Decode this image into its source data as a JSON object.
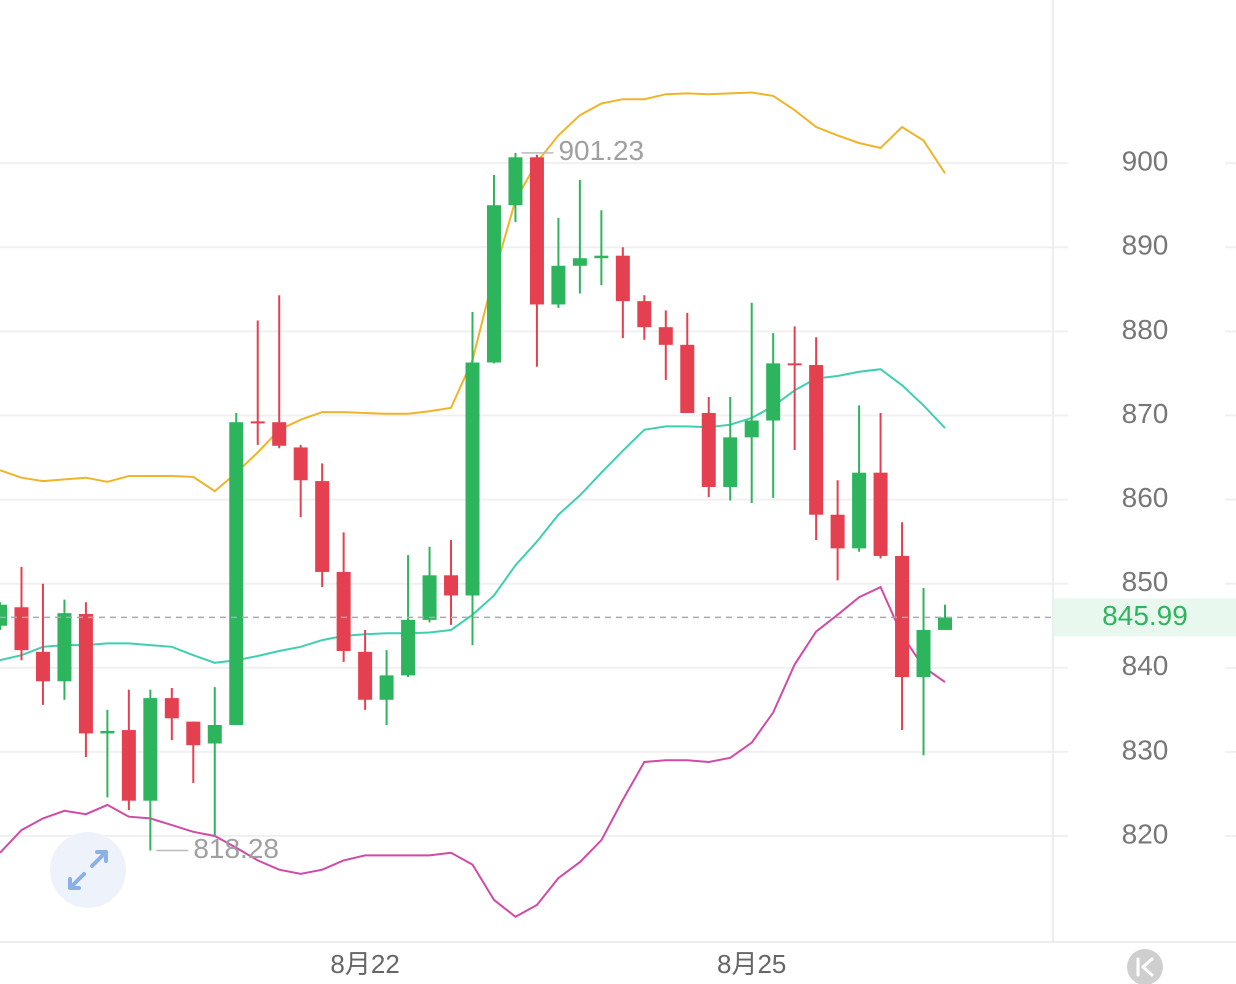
{
  "chart_data": {
    "type": "candlestick",
    "categories": [
      null,
      null,
      null,
      null,
      null,
      null,
      null,
      null,
      null,
      null,
      null,
      null,
      null,
      null,
      null,
      null,
      null,
      "8月22",
      null,
      null,
      null,
      null,
      null,
      null,
      null,
      null,
      null,
      null,
      null,
      null,
      null,
      null,
      null,
      null,
      null,
      "8月25",
      null,
      null,
      null,
      null,
      null,
      null,
      null,
      null,
      null
    ],
    "open": [
      845.0,
      847.2,
      841.9,
      838.4,
      846.4,
      832.2,
      832.6,
      824.2,
      836.4,
      833.6,
      831.0,
      833.2,
      869.3,
      869.2,
      866.2,
      862.2,
      851.4,
      841.9,
      836.2,
      839.1,
      845.7,
      851.0,
      848.6,
      876.3,
      895.0,
      900.7,
      883.2,
      887.8,
      888.7,
      889.0,
      883.6,
      880.5,
      878.4,
      870.3,
      861.5,
      867.4,
      869.4,
      876.2,
      876.0,
      858.2,
      854.2,
      863.2,
      853.3,
      838.9,
      844.5
    ],
    "high": [
      847.8,
      852.0,
      850.0,
      848.1,
      847.8,
      835.0,
      837.4,
      837.4,
      837.6,
      833.6,
      837.7,
      870.3,
      881.3,
      884.3,
      866.5,
      864.3,
      856.1,
      844.5,
      842.1,
      853.4,
      854.4,
      855.2,
      882.3,
      898.6,
      901.23,
      901.0,
      893.5,
      898.0,
      894.4,
      890.0,
      884.3,
      882.5,
      882.2,
      872.2,
      872.2,
      883.4,
      879.8,
      880.6,
      879.3,
      862.3,
      871.2,
      870.3,
      857.3,
      849.5,
      847.5
    ],
    "low": [
      844.5,
      840.9,
      835.6,
      836.2,
      829.4,
      824.6,
      823.1,
      818.28,
      831.4,
      826.3,
      820.1,
      833.2,
      866.5,
      866.1,
      857.9,
      849.6,
      840.7,
      835.0,
      833.2,
      838.9,
      845.4,
      845.1,
      842.7,
      876.2,
      893.0,
      875.8,
      882.8,
      884.5,
      885.5,
      879.2,
      879.0,
      874.2,
      870.3,
      860.3,
      859.9,
      859.6,
      860.2,
      865.9,
      855.2,
      850.4,
      853.8,
      853.0,
      832.6,
      829.6,
      844.5
    ],
    "close": [
      847.5,
      842.1,
      838.4,
      846.5,
      832.2,
      832.5,
      824.2,
      836.4,
      834.0,
      830.8,
      833.2,
      869.2,
      869.1,
      866.4,
      862.3,
      851.4,
      842.0,
      836.2,
      839.1,
      845.7,
      851.0,
      848.6,
      876.3,
      895.0,
      900.7,
      883.2,
      887.8,
      888.7,
      889.0,
      883.6,
      880.5,
      878.4,
      870.3,
      861.5,
      867.4,
      869.4,
      876.2,
      876.1,
      858.2,
      854.2,
      863.2,
      853.3,
      838.9,
      844.5,
      845.99
    ],
    "up_color": "#2db55d",
    "down_color": "#e5404f",
    "overlays": [
      {
        "color": "#f0b429",
        "values": [
          863.5,
          862.6,
          862.2,
          862.4,
          862.6,
          862.1,
          862.8,
          862.8,
          862.8,
          862.7,
          861.0,
          863.2,
          865.6,
          868.3,
          869.5,
          870.4,
          870.4,
          870.3,
          870.2,
          870.2,
          870.5,
          870.9,
          876.6,
          886.7,
          895.6,
          900.1,
          903.3,
          905.7,
          907.1,
          907.6,
          907.6,
          908.2,
          908.3,
          908.2,
          908.3,
          908.4,
          908.0,
          906.3,
          904.3,
          903.3,
          902.4,
          901.8,
          904.3,
          902.7,
          898.8
        ]
      },
      {
        "color": "#3fcfb0",
        "values": [
          840.9,
          841.5,
          842.5,
          842.7,
          842.7,
          842.9,
          842.9,
          842.7,
          842.5,
          841.5,
          840.6,
          840.9,
          841.4,
          842.0,
          842.5,
          843.3,
          843.8,
          844.0,
          844.1,
          844.1,
          844.2,
          844.5,
          846.3,
          848.6,
          852.2,
          855.0,
          858.2,
          860.5,
          863.2,
          865.8,
          868.3,
          868.7,
          868.7,
          868.6,
          868.9,
          869.7,
          871.1,
          873.0,
          874.4,
          874.7,
          875.2,
          875.5,
          873.6,
          871.2,
          868.5
        ]
      },
      {
        "color": "#d04aa6",
        "values": [
          818.0,
          820.7,
          822.1,
          823.0,
          822.6,
          823.7,
          822.3,
          822.1,
          821.3,
          820.5,
          820.0,
          818.6,
          817.1,
          816.0,
          815.5,
          816.0,
          817.1,
          817.7,
          817.7,
          817.7,
          817.7,
          818.0,
          816.6,
          812.4,
          810.4,
          811.8,
          815.0,
          816.9,
          819.5,
          824.3,
          828.8,
          829.0,
          829.0,
          828.8,
          829.3,
          831.1,
          834.7,
          840.4,
          844.3,
          846.3,
          848.4,
          849.6,
          843.9,
          840.1,
          838.3
        ]
      }
    ],
    "ylim": [
      807.4,
      919.4
    ],
    "yticks": [
      820,
      830,
      840,
      850,
      860,
      870,
      880,
      890,
      900
    ],
    "grid": true
  }
}
